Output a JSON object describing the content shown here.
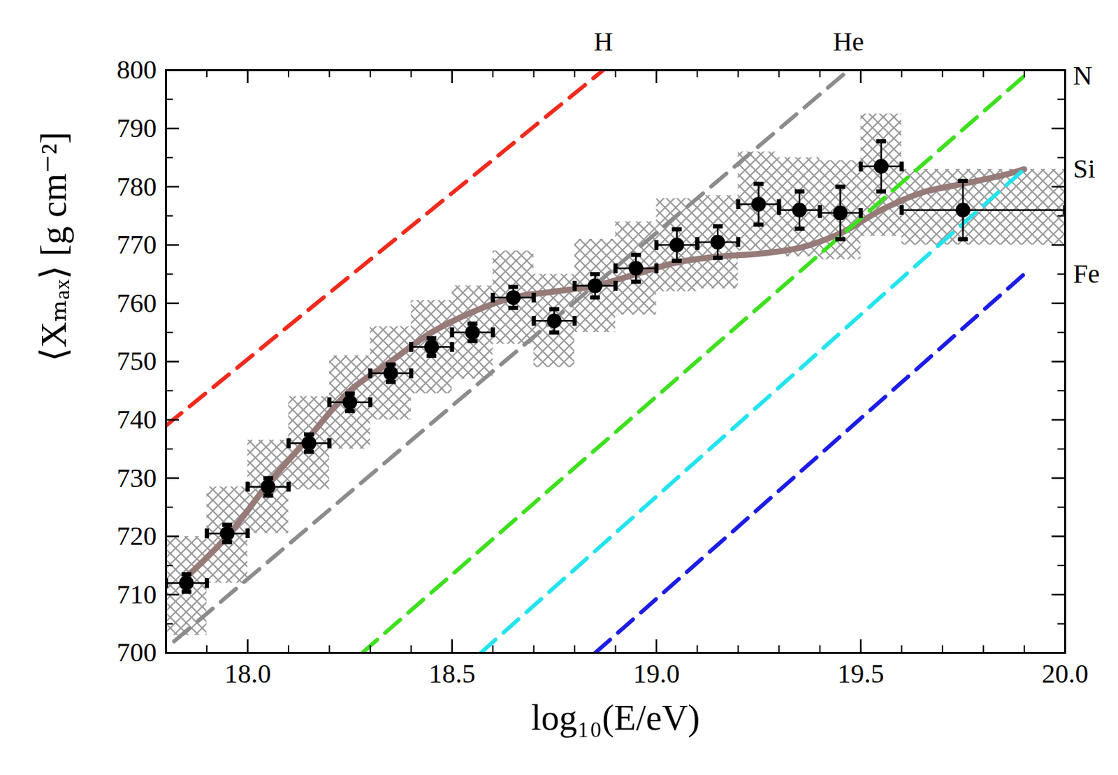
{
  "chart_data": {
    "type": "scatter",
    "xlabel": "log₁₀(E/eV)",
    "ylabel": "⟨Xₘₐₓ⟩ [g cm⁻²]",
    "xlim": [
      17.8,
      20.0
    ],
    "ylim": [
      700,
      800
    ],
    "xticks": [
      {
        "value": 18,
        "label": "18.0"
      },
      {
        "value": 18.5,
        "label": "18.5"
      },
      {
        "value": 19,
        "label": "19.0"
      },
      {
        "value": 19.5,
        "label": "19.5"
      },
      {
        "value": 20,
        "label": "20.0"
      }
    ],
    "yticks": [
      700,
      710,
      720,
      730,
      740,
      750,
      760,
      770,
      780,
      790,
      800
    ],
    "grid": false,
    "series": [
      {
        "type": "scatter",
        "color": "#000000",
        "marker": "circle",
        "x": [
          17.85,
          17.95,
          18.05,
          18.15,
          18.25,
          18.35,
          18.45,
          18.55,
          18.65,
          18.75,
          18.85,
          18.95,
          19.05,
          19.15,
          19.25,
          19.35,
          19.45,
          19.55,
          19.75
        ],
        "values": [
          712,
          720.5,
          728.5,
          736,
          743,
          748,
          752.5,
          755,
          761,
          757,
          763,
          766,
          770,
          770.5,
          777,
          776,
          775.5,
          783.5,
          776
        ],
        "yerr": [
          1.5,
          1.5,
          1.5,
          1.5,
          1.5,
          1.5,
          1.5,
          1.5,
          1.8,
          2,
          2,
          2.3,
          2.7,
          2.7,
          3.5,
          3.2,
          4.5,
          4.3,
          5
        ],
        "xerr_minus": [
          0.05,
          0.05,
          0.05,
          0.05,
          0.05,
          0.05,
          0.05,
          0.05,
          0.05,
          0.05,
          0.05,
          0.05,
          0.05,
          0.05,
          0.05,
          0.05,
          0.05,
          0.05,
          0.15
        ],
        "xerr_plus": [
          0.05,
          0.05,
          0.05,
          0.05,
          0.05,
          0.05,
          0.05,
          0.05,
          0.05,
          0.05,
          0.05,
          0.05,
          0.05,
          0.05,
          0.05,
          0.05,
          0.05,
          0.05,
          0.25
        ],
        "sys_minus": [
          9,
          8.5,
          8,
          8,
          8,
          8,
          8,
          8,
          8,
          8,
          8,
          8,
          8,
          8,
          8,
          8,
          8,
          12,
          6
        ],
        "sys_plus": [
          8,
          8,
          8,
          8,
          8,
          8,
          8,
          8,
          8,
          8,
          8,
          8,
          8,
          8,
          9,
          9,
          9,
          9,
          7
        ]
      },
      {
        "type": "line",
        "color": "#967b79",
        "line_style": "solid",
        "x": [
          17.85,
          17.95,
          18.05,
          18.15,
          18.25,
          18.35,
          18.45,
          18.55,
          18.65,
          18.75,
          18.85,
          18.95,
          19.05,
          19.15,
          19.25,
          19.35,
          19.45,
          19.55,
          19.65,
          19.75,
          19.85,
          19.9
        ],
        "values": [
          713,
          720,
          729,
          737,
          745,
          750,
          755,
          758.5,
          761,
          762,
          763,
          765,
          767,
          768,
          768.5,
          769.5,
          772,
          776,
          779,
          780.5,
          782,
          783
        ]
      },
      {
        "type": "line",
        "name": "H",
        "color": "#f02a1c",
        "line_style": "dashed",
        "x": [
          17.8,
          18.87
        ],
        "values": [
          739,
          800
        ]
      },
      {
        "type": "line",
        "name": "He",
        "color": "#8c8c8c",
        "line_style": "dashed",
        "x": [
          17.82,
          19.47
        ],
        "values": [
          702,
          800
        ]
      },
      {
        "type": "line",
        "name": "N",
        "color": "#3ee01e",
        "line_style": "dashed",
        "x": [
          18.28,
          19.9
        ],
        "values": [
          700,
          799
        ]
      },
      {
        "type": "line",
        "name": "Si",
        "color": "#22e4ee",
        "line_style": "dashed",
        "x": [
          18.57,
          19.9
        ],
        "values": [
          700,
          783
        ]
      },
      {
        "type": "line",
        "name": "Fe",
        "color": "#1c1ce6",
        "line_style": "dashed",
        "x": [
          18.85,
          19.9
        ],
        "values": [
          700,
          765
        ]
      }
    ]
  }
}
